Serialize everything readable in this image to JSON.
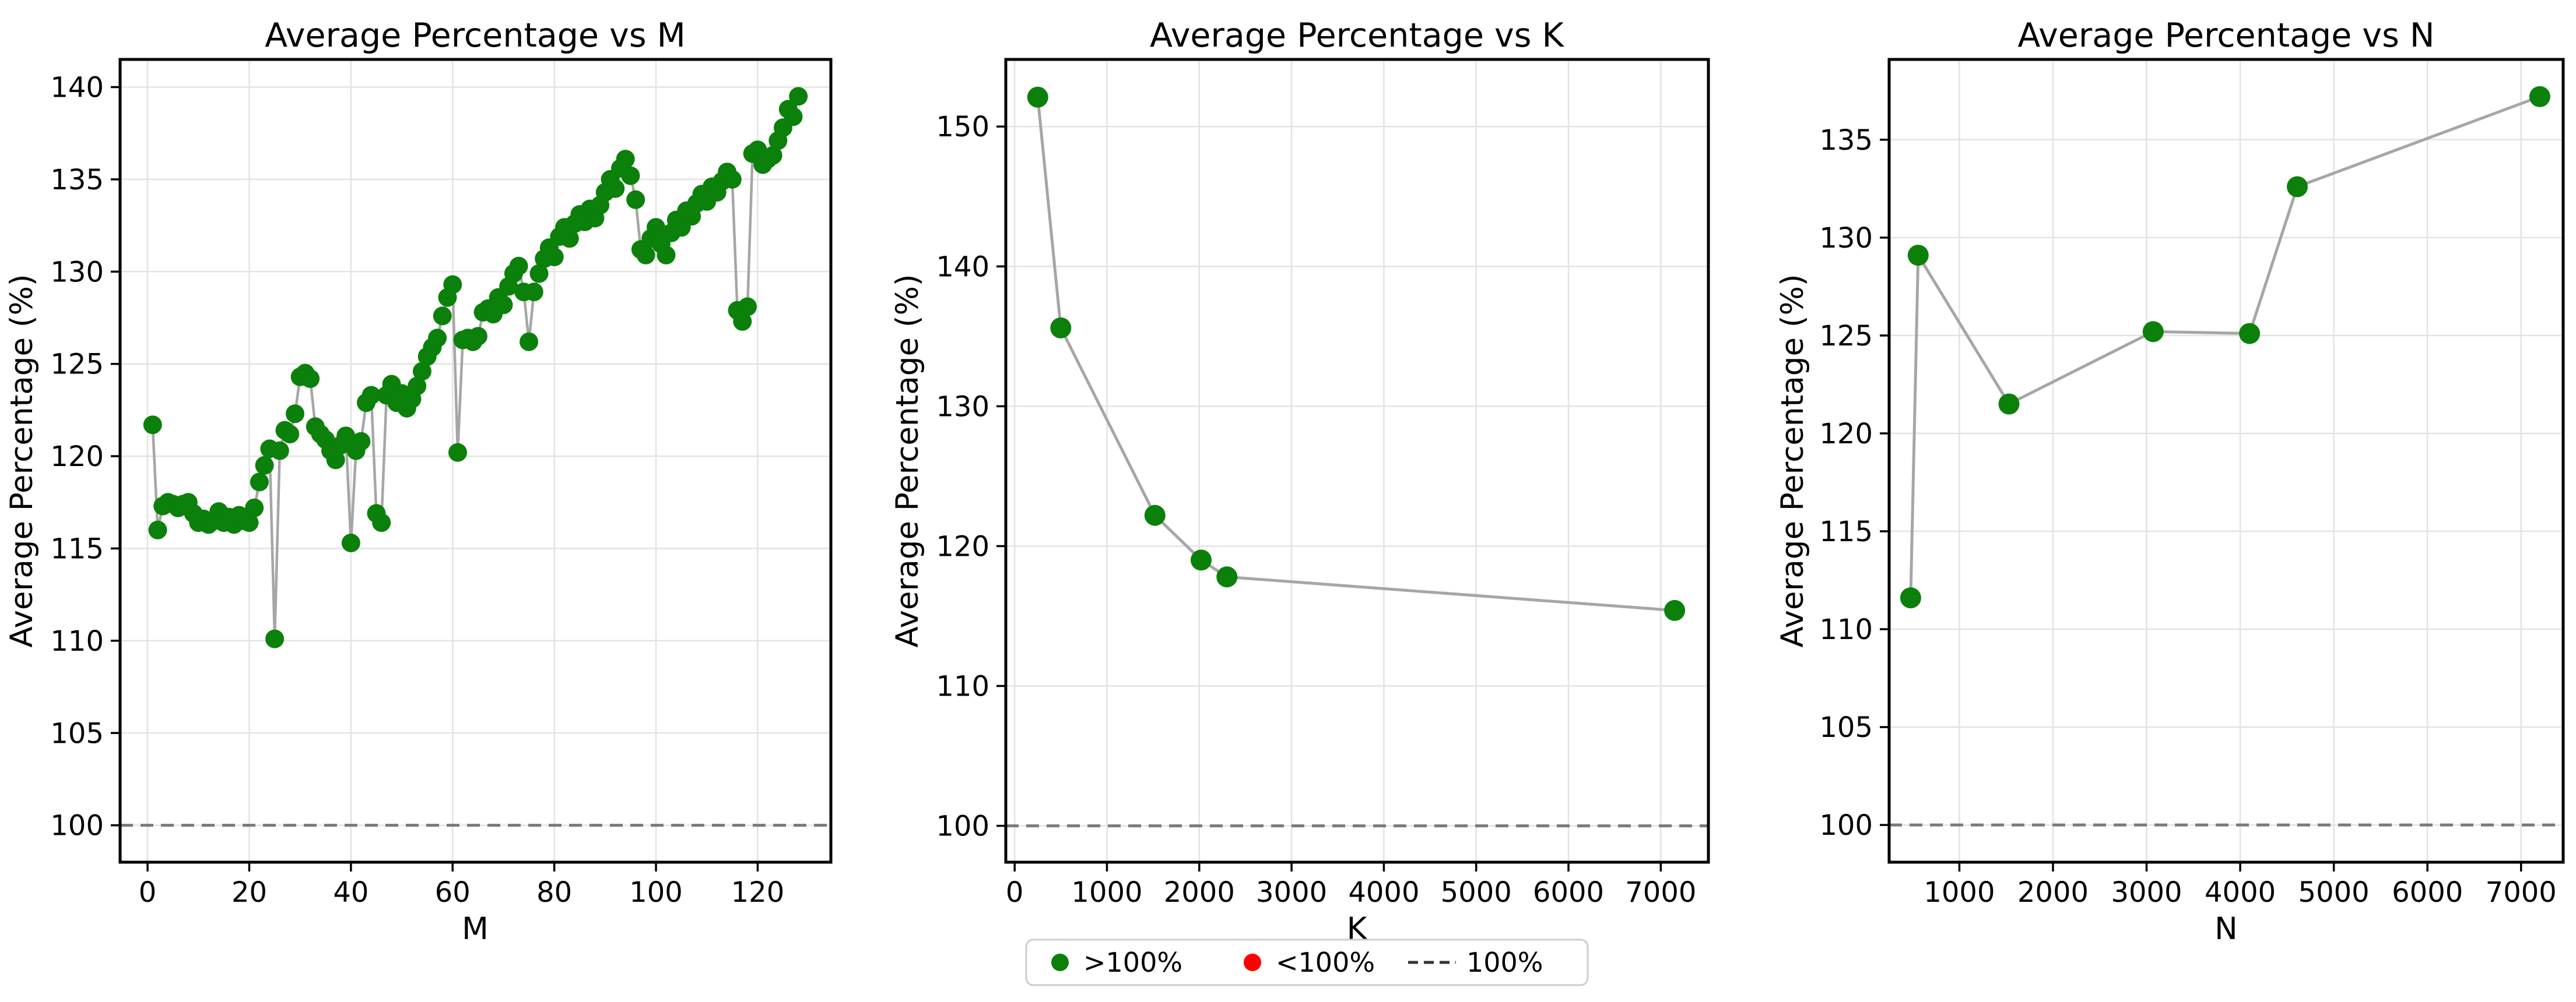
{
  "figure": {
    "background": "#ffffff",
    "colors": {
      "marker_above": "#0b800b",
      "marker_below": "#ff0000",
      "series_line": "#a6a6a6",
      "ref_line": "#7a7a7a",
      "grid": "#e3e3e3",
      "spine": "#000000",
      "legend_border": "#cccccc"
    }
  },
  "legend": {
    "items": [
      {
        "label": ">100%",
        "marker": "dot",
        "color": "#0b800b"
      },
      {
        "label": "<100%",
        "marker": "dot",
        "color": "#ff0000"
      },
      {
        "label": "100%",
        "marker": "dash",
        "color": "#333333"
      }
    ]
  },
  "chart_data": [
    {
      "type": "line",
      "title": "Average Percentage vs M",
      "xlabel": "M",
      "ylabel": "Average Percentage (%)",
      "x_ticks": [
        0,
        20,
        40,
        60,
        80,
        100,
        120
      ],
      "y_ticks": [
        100,
        105,
        110,
        115,
        120,
        125,
        130,
        135,
        140
      ],
      "xlim": [
        -5.4,
        134.4
      ],
      "ylim": [
        98.0,
        141.5
      ],
      "ref_line_y": 100,
      "grid": true,
      "x": [
        1,
        2,
        3,
        4,
        5,
        6,
        7,
        8,
        9,
        10,
        11,
        12,
        13,
        14,
        15,
        16,
        17,
        18,
        19,
        20,
        21,
        22,
        23,
        24,
        25,
        26,
        27,
        28,
        29,
        30,
        31,
        32,
        33,
        34,
        35,
        36,
        37,
        38,
        39,
        40,
        41,
        42,
        43,
        44,
        45,
        46,
        47,
        48,
        49,
        50,
        51,
        52,
        53,
        54,
        55,
        56,
        57,
        58,
        59,
        60,
        61,
        62,
        63,
        64,
        65,
        66,
        67,
        68,
        69,
        70,
        71,
        72,
        73,
        74,
        75,
        76,
        77,
        78,
        79,
        80,
        81,
        82,
        83,
        84,
        85,
        86,
        87,
        88,
        89,
        90,
        91,
        92,
        93,
        94,
        95,
        96,
        97,
        98,
        99,
        100,
        101,
        102,
        103,
        104,
        105,
        106,
        107,
        108,
        109,
        110,
        111,
        112,
        113,
        114,
        115,
        116,
        117,
        118,
        119,
        120,
        121,
        122,
        123,
        124,
        125,
        126,
        127,
        128
      ],
      "y": [
        121.7,
        116.0,
        117.3,
        117.5,
        117.4,
        117.2,
        117.4,
        117.5,
        116.9,
        116.4,
        116.6,
        116.3,
        116.5,
        117.0,
        116.4,
        116.7,
        116.3,
        116.8,
        116.5,
        116.4,
        117.2,
        118.6,
        119.5,
        120.4,
        110.1,
        120.3,
        121.4,
        121.2,
        122.3,
        124.3,
        124.5,
        124.2,
        121.6,
        121.2,
        120.9,
        120.3,
        119.8,
        120.6,
        121.1,
        115.3,
        120.3,
        120.8,
        122.9,
        123.3,
        116.9,
        116.4,
        123.3,
        123.9,
        122.9,
        123.4,
        122.6,
        123.1,
        123.8,
        124.6,
        125.4,
        125.9,
        126.4,
        127.6,
        128.6,
        129.3,
        120.2,
        126.3,
        126.4,
        126.2,
        126.5,
        127.8,
        128.0,
        127.7,
        128.6,
        128.2,
        129.2,
        129.9,
        130.3,
        128.9,
        126.2,
        128.9,
        129.9,
        130.7,
        131.3,
        130.8,
        131.9,
        132.4,
        131.8,
        132.6,
        133.1,
        132.7,
        133.4,
        132.9,
        133.6,
        134.3,
        135.0,
        134.5,
        135.6,
        136.1,
        135.2,
        133.9,
        131.2,
        130.9,
        131.8,
        132.4,
        131.5,
        130.9,
        132.1,
        132.8,
        132.4,
        133.3,
        133.0,
        133.7,
        134.2,
        133.8,
        134.6,
        134.3,
        134.9,
        135.4,
        135.0,
        127.9,
        127.3,
        128.1,
        136.4,
        136.6,
        135.8,
        136.1,
        136.3,
        137.1,
        137.8,
        138.8,
        138.4,
        139.5
      ]
    },
    {
      "type": "line",
      "title": "Average Percentage vs K",
      "xlabel": "K",
      "ylabel": "Average Percentage (%)",
      "x_ticks": [
        0,
        1000,
        2000,
        3000,
        4000,
        5000,
        6000,
        7000
      ],
      "y_ticks": [
        100,
        110,
        120,
        130,
        140,
        150
      ],
      "xlim": [
        -96,
        7516
      ],
      "ylim": [
        97.4,
        154.8
      ],
      "ref_line_y": 100,
      "grid": true,
      "x": [
        250,
        500,
        1520,
        2020,
        2300,
        7150
      ],
      "y": [
        152.1,
        135.6,
        122.2,
        119.0,
        117.8,
        115.4
      ]
    },
    {
      "type": "line",
      "title": "Average Percentage vs N",
      "xlabel": "N",
      "ylabel": "Average Percentage (%)",
      "x_ticks": [
        1000,
        2000,
        3000,
        4000,
        5000,
        6000,
        7000
      ],
      "y_ticks": [
        100,
        105,
        110,
        115,
        120,
        125,
        130,
        135
      ],
      "xlim": [
        250,
        7450
      ],
      "ylim": [
        98.1,
        139.1
      ],
      "ref_line_y": 100,
      "grid": true,
      "x": [
        480,
        560,
        1530,
        3070,
        4100,
        4610,
        7200
      ],
      "y": [
        111.6,
        129.1,
        121.5,
        125.2,
        125.1,
        132.6,
        137.2
      ]
    }
  ]
}
